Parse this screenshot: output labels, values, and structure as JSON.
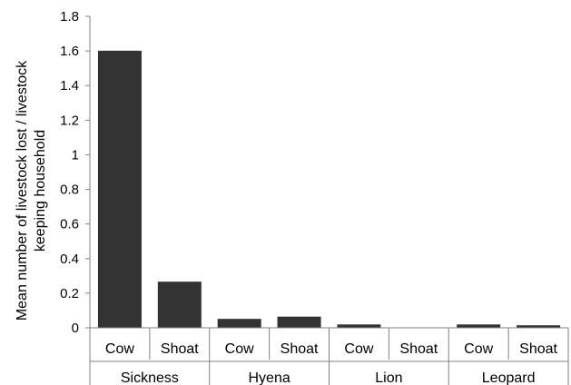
{
  "chart_data": {
    "type": "bar",
    "ylabel": "Mean number of livestock lost / livestock keeping household",
    "ylabel_lines": [
      "Mean number of livestock lost / livestock",
      "keeping household"
    ],
    "ylim": [
      0,
      1.8
    ],
    "yticks": [
      0,
      0.2,
      0.4,
      0.6,
      0.8,
      1,
      1.2,
      1.4,
      1.6,
      1.8
    ],
    "ytick_labels": [
      "0",
      "0.2",
      "0.4",
      "0.6",
      "0.8",
      "1",
      "1.2",
      "1.4",
      "1.6",
      "1.8"
    ],
    "grid": false,
    "groups": [
      {
        "name": "Sickness",
        "categories": [
          "Cow",
          "Shoat"
        ],
        "values": [
          1.6,
          0.265
        ]
      },
      {
        "name": "Hyena",
        "categories": [
          "Cow",
          "Shoat"
        ],
        "values": [
          0.05,
          0.063
        ]
      },
      {
        "name": "Lion",
        "categories": [
          "Cow",
          "Shoat"
        ],
        "values": [
          0.018,
          0
        ]
      },
      {
        "name": "Leopard",
        "categories": [
          "Cow",
          "Shoat"
        ],
        "values": [
          0.018,
          0.013
        ]
      }
    ],
    "bar_color": "#333333"
  }
}
